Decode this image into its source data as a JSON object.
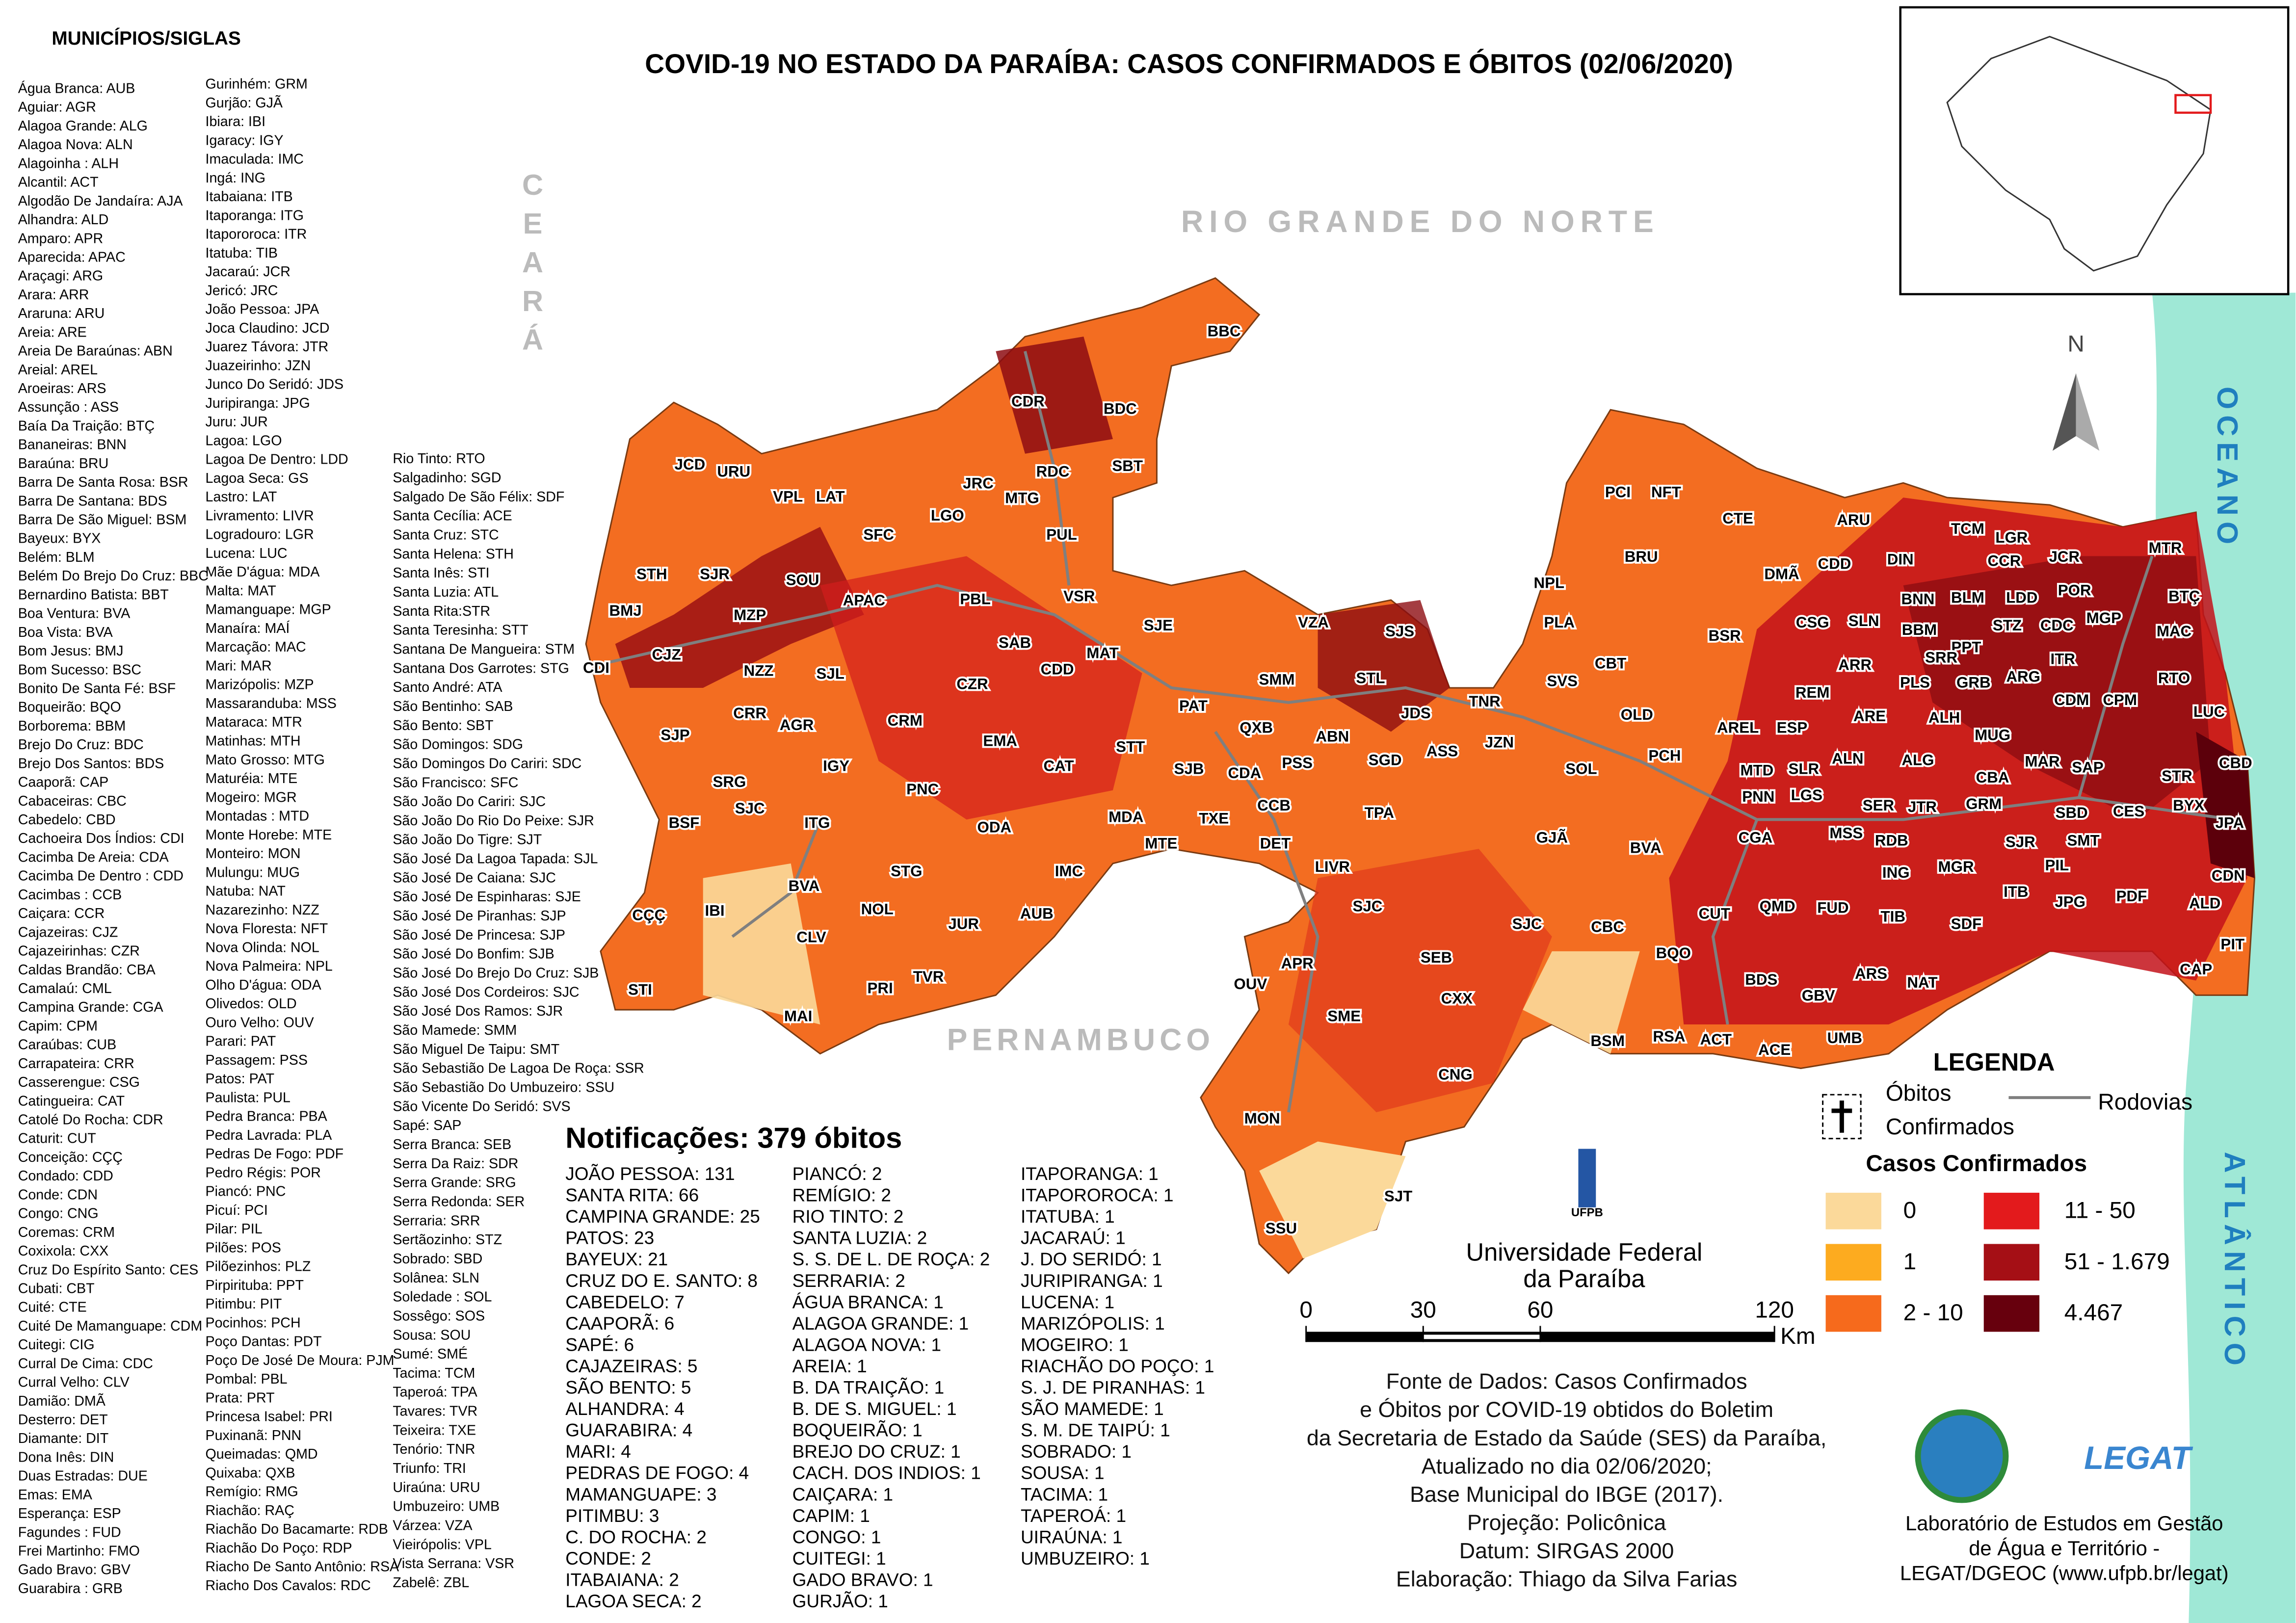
{
  "title": "COVID-19 NO ESTADO DA PARAÍBA: CASOS CONFIRMADOS E  ÓBITOS (02/06/2020)",
  "municipalities_heading": "MUNICÍPIOS/SIGLAS",
  "municipality_columns": [
    [
      "Água Branca: AUB",
      "Aguiar: AGR",
      "Alagoa Grande: ALG",
      "Alagoa Nova: ALN",
      "Alagoinha : ALH",
      "Alcantil: ACT",
      "Algodão De Jandaíra: AJA",
      "Alhandra: ALD",
      "Amparo: APR",
      "Aparecida: APAC",
      "Araçagi: ARG",
      "Arara: ARR",
      "Araruna: ARU",
      "Areia: ARE",
      "Areia De Baraúnas: ABN",
      "Areial: AREL",
      "Aroeiras: ARS",
      "Assunção : ASS",
      "Baía Da Traição: BTÇ",
      "Bananeiras: BNN",
      "Baraúna: BRU",
      "Barra De Santa Rosa: BSR",
      "Barra De Santana: BDS",
      "Barra De São Miguel: BSM",
      "Bayeux: BYX",
      "Belém: BLM",
      "Belém Do Brejo Do Cruz: BBC",
      "Bernardino Batista: BBT",
      "Boa Ventura: BVA",
      "Boa Vista: BVA",
      "Bom Jesus: BMJ",
      "Bom Sucesso: BSC",
      "Bonito De Santa Fé: BSF",
      "Boqueirão: BQO",
      "Borborema: BBM",
      "Brejo Do Cruz: BDC",
      "Brejo Dos Santos: BDS",
      "Caaporã: CAP",
      "Cabaceiras: CBC",
      "Cabedelo: CBD",
      "Cachoeira Dos Índios: CDI",
      "Cacimba De Areia: CDA",
      "Cacimba De Dentro : CDD",
      "Cacimbas : CCB",
      "Caiçara: CCR",
      "Cajazeiras: CJZ",
      "Cajazeirinhas: CZR",
      "Caldas Brandão: CBA",
      "Camalaú: CML",
      "Campina Grande: CGA",
      "Capim: CPM",
      "Caraúbas:  CUB",
      "Carrapateira: CRR",
      "Casserengue: CSG",
      "Catingueira: CAT",
      "Catolé Do Rocha: CDR",
      "Caturit: CUT",
      "Conceição: CÇÇ",
      "Condado: CDD",
      "Conde: CDN",
      "Congo: CNG",
      "Coremas: CRM",
      "Coxixola: CXX",
      "Cruz Do Espírito Santo: CES",
      "Cubati: CBT",
      "Cuité: CTE",
      "Cuité De Mamanguape: CDM",
      "Cuitegi: CIG",
      "Curral De Cima: CDC",
      "Curral Velho: CLV",
      "Damião: DMÃ",
      "Desterro: DET",
      "Diamante: DIT",
      "Dona Inês: DIN",
      "Duas Estradas: DUE",
      "Emas: EMA",
      "Esperança: ESP",
      "Fagundes : FUD",
      "Frei Martinho: FMO",
      "Gado Bravo: GBV",
      "Guarabira : GRB"
    ],
    [
      "Gurinhém: GRM",
      "Gurjão: GJÃ",
      "Ibiara: IBI",
      "Igaracy: IGY",
      "Imaculada: IMC",
      "Ingá: ING",
      "Itabaiana: ITB",
      "Itaporanga: ITG",
      "Itapororoca: ITR",
      "Itatuba: TIB",
      "Jacaraú: JCR",
      "Jericó: JRC",
      "João Pessoa: JPA",
      "Joca Claudino: JCD",
      "Juarez Távora: JTR",
      "Juazeirinho: JZN",
      "Junco Do Seridó: JDS",
      "Juripiranga: JPG",
      "Juru: JUR",
      "Lagoa: LGO",
      "Lagoa De Dentro: LDD",
      "Lagoa Seca: GS",
      "Lastro: LAT",
      "Livramento: LIVR",
      "Logradouro: LGR",
      "Lucena: LUC",
      "Mãe D'água: MDA",
      "Malta: MAT",
      "Mamanguape: MGP",
      "Manaíra: MAÍ",
      "Marcação: MAC",
      "Mari: MAR",
      "Marizópolis: MZP",
      "Massaranduba: MSS",
      "Mataraca: MTR",
      "Matinhas: MTH",
      "Mato Grosso: MTG",
      "Maturéia: MTE",
      "Mogeiro: MGR",
      "Montadas : MTD",
      "Monte Horebe: MTE",
      "Monteiro: MON",
      "Mulungu: MUG",
      "Natuba: NAT",
      "Nazarezinho: NZZ",
      "Nova Floresta: NFT",
      "Nova Olinda: NOL",
      "Nova Palmeira: NPL",
      "Olho D'água: ODA",
      "Olivedos: OLD",
      "Ouro Velho: OUV",
      "Parari: PAT",
      "Passagem: PSS",
      "Patos: PAT",
      "Paulista: PUL",
      "Pedra Branca: PBA",
      "Pedra Lavrada: PLA",
      "Pedras De Fogo: PDF",
      "Pedro Régis: POR",
      "Piancó: PNC",
      "Picuí: PCI",
      "Pilar: PIL",
      "Pilões: POS",
      "Pilõezinhos: PLZ",
      "Pirpirituba: PPT",
      "Pitimbu: PIT",
      "Pocinhos: PCH",
      "Poço Dantas: PDT",
      "Poço De José De Moura: PJM",
      "Pombal: PBL",
      "Prata: PRT",
      "Princesa Isabel: PRI",
      "Puxinanã: PNN",
      "Queimadas: QMD",
      "Quixaba: QXB",
      "Remígio: RMG",
      "Riachão: RAÇ",
      "Riachão Do Bacamarte: RDB",
      "Riachão Do Poço: RDP",
      "Riacho De Santo Antônio: RSA",
      "Riacho Dos Cavalos: RDC"
    ],
    [
      "Rio Tinto:  RTO",
      "Salgadinho: SGD",
      "Salgado De São Félix: SDF",
      "Santa Cecília: ACE",
      "Santa Cruz: STC",
      "Santa Helena: STH",
      "Santa Inês: STI",
      "Santa Luzia: ATL",
      "Santa Rita:STR",
      "Santa Teresinha: STT",
      "Santana De Mangueira: STM",
      "Santana Dos Garrotes: STG",
      "Santo André: ATA",
      "São Bentinho: SAB",
      "São Bento: SBT",
      "São Domingos: SDG",
      "São Domingos Do Cariri: SDC",
      "São Francisco: SFC",
      "São João Do Cariri: SJC",
      "São João Do Rio Do Peixe: SJR",
      "São João Do Tigre: SJT",
      "São José Da Lagoa Tapada: SJL",
      "São José De Caiana: SJC",
      "São José De Espinharas: SJE",
      "São José De Piranhas: SJP",
      "São José De Princesa: SJP",
      "São José Do Bonfim: SJB",
      "São José Do Brejo Do Cruz: SJB",
      "São José Dos Cordeiros: SJC",
      "São José Dos Ramos: SJR",
      "São Mamede: SMM",
      "São Miguel De Taipu: SMT",
      "São Sebastião De Lagoa De Roça: SSR",
      "São Sebastião Do Umbuzeiro: SSU",
      "São Vicente Do Seridó: SVS",
      "Sapé: SAP",
      "Serra Branca: SEB",
      "Serra Da Raiz: SDR",
      "Serra Grande: SRG",
      "Serra Redonda: SER",
      "Serraria: SRR",
      "Sertãozinho: STZ",
      "Sobrado: SBD",
      "Solânea: SLN",
      "Soledade : SOL",
      "Sossêgo: SOS",
      "Sousa: SOU",
      "Sumé: SMÉ",
      "Tacima: TCM",
      "Taperoá: TPA",
      "Tavares: TVR",
      "Teixeira: TXE",
      "Tenório: TNR",
      "Triunfo: TRI",
      "Uiraúna:  URU",
      "Umbuzeiro: UMB",
      "Várzea: VZA",
      "Vieirópolis: VPL",
      "Vista Serrana: VSR",
      "Zabelê: ZBL"
    ]
  ],
  "states": {
    "ceara": "CEARÁ",
    "rio_grande_do_norte": "RIO GRANDE DO NORTE",
    "pernambuco": "PERNAMBUCO"
  },
  "ocean": [
    "OCEANO",
    "ATLÂNTICO"
  ],
  "north": "N",
  "map_labels": [
    "BBC",
    "CDR",
    "BDC",
    "SBT",
    "JCD",
    "URU",
    "VPL",
    "LAT",
    "JRC",
    "RDC",
    "MTG",
    "LGO",
    "SFC",
    "PUL",
    "STH",
    "SJR",
    "SOU",
    "APAC",
    "PBL",
    "VSR",
    "BMJ",
    "MZP",
    "CJZ",
    "CDI",
    "NZZ",
    "SJL",
    "SAB",
    "CDD",
    "MAT",
    "SJE",
    "CZR",
    "CRR",
    "AGR",
    "CRM",
    "EMA",
    "SJP",
    "IGY",
    "CAT",
    "STT",
    "SRG",
    "PNC",
    "SJC",
    "BSF",
    "ITG",
    "ODA",
    "MDA",
    "MTE",
    "BVA",
    "STG",
    "IMC",
    "CÇÇ",
    "IBI",
    "NOL",
    "JUR",
    "AUB",
    "CLV",
    "TVR",
    "PRI",
    "STI",
    "MAI",
    "VZA",
    "SJS",
    "SMM",
    "STL",
    "PAT",
    "QXB",
    "ABN",
    "SJB",
    "CDA",
    "PSS",
    "SGD",
    "CCB",
    "TXE",
    "DET",
    "TPA",
    "JDS",
    "TNR",
    "ASS",
    "JZN",
    "SVS",
    "OLD",
    "SOL",
    "LIVR",
    "GJÃ",
    "BVA",
    "SJC",
    "SJC",
    "CBC",
    "APR",
    "OUV",
    "SME",
    "SEB",
    "CXX",
    "BSM",
    "RSA",
    "ACT",
    "CNG",
    "MON",
    "SJT",
    "SSU",
    "PCI",
    "NFT",
    "CTE",
    "ARU",
    "BRU",
    "NPL",
    "DMÃ",
    "CDD",
    "DIN",
    "PLA",
    "CBT",
    "BSR",
    "CSG",
    "SLN",
    "BNN",
    "BLM",
    "LDD",
    "POR",
    "BBM",
    "STZ",
    "CDC",
    "PPT",
    "MGP",
    "MTR",
    "BTÇ",
    "MAC",
    "TCM",
    "LGR",
    "CCR",
    "JCR",
    "SRR",
    "ARR",
    "ITR",
    "RTO",
    "PLS",
    "GRB",
    "ARG",
    "REM",
    "CDM",
    "CPM",
    "ARE",
    "ALH",
    "LUC",
    "AREL",
    "ESP",
    "MUG",
    "CBD",
    "PCH",
    "MTD",
    "SLR",
    "ALN",
    "ALG",
    "CBA",
    "MAR",
    "SAP",
    "STR",
    "PNN",
    "LGS",
    "SER",
    "JTR",
    "GRM",
    "SBD",
    "CES",
    "BYX",
    "JPA",
    "CGA",
    "MSS",
    "RDB",
    "SJR",
    "SMT",
    "ING",
    "MGR",
    "PIL",
    "CDN",
    "CUT",
    "QMD",
    "FUD",
    "TIB",
    "ITB",
    "JPG",
    "PDF",
    "SDF",
    "ALD",
    "BQO",
    "PIT",
    "ARS",
    "BDS",
    "GBV",
    "NAT",
    "CAP",
    "UMB",
    "ACE"
  ],
  "notifications": {
    "title": "Notificações: 379 óbitos",
    "columns": [
      [
        "JOÃO PESSOA: 131",
        "SANTA RITA: 66",
        "CAMPINA GRANDE: 25",
        "PATOS: 23",
        "BAYEUX: 21",
        "CRUZ DO E. SANTO: 8",
        "CABEDELO: 7",
        "CAAPORÃ: 6",
        "SAPÉ: 6",
        "CAJAZEIRAS: 5",
        "SÃO BENTO: 5",
        "ALHANDRA: 4",
        "GUARABIRA: 4",
        "MARI: 4",
        "PEDRAS DE FOGO: 4",
        "MAMANGUAPE: 3",
        "PITIMBU: 3",
        "C. DO ROCHA: 2",
        "CONDE: 2",
        "ITABAIANA: 2",
        "LAGOA SECA: 2"
      ],
      [
        "PIANCÓ: 2",
        "REMÍGIO: 2",
        "RIO TINTO: 2",
        "SANTA LUZIA: 2",
        "S. S. DE L. DE ROÇA: 2",
        "SERRARIA: 2",
        "ÁGUA BRANCA: 1",
        "ALAGOA GRANDE: 1",
        "ALAGOA  NOVA: 1",
        "AREIA: 1",
        "B. DA TRAIÇÃO: 1",
        "B. DE S. MIGUEL: 1",
        "BOQUEIRÃO: 1",
        "BREJO DO CRUZ: 1",
        "CACH. DOS INDIOS: 1",
        "CAIÇARA: 1",
        "CAPIM: 1",
        "CONGO: 1",
        "CUITEGI: 1",
        "GADO BRAVO: 1",
        "GURJÃO: 1"
      ],
      [
        "ITAPORANGA: 1",
        "ITAPOROROCA: 1",
        "ITATUBA: 1",
        "JACARAÚ: 1",
        "J. DO SERIDÓ: 1",
        "JURIPIRANGA: 1",
        "LUCENA: 1",
        "MARIZÓPOLIS: 1",
        "MOGEIRO: 1",
        "RIACHÃO DO POÇO: 1",
        "S. J. DE PIRANHAS: 1",
        "SÃO MAMEDE: 1",
        "S. M. DE TAIPÚ: 1",
        "SOBRADO: 1",
        "SOUSA: 1",
        "TACIMA: 1",
        "TAPEROÁ: 1",
        "UIRAÚNA: 1",
        "UMBUZEIRO: 1"
      ]
    ]
  },
  "legend": {
    "title": "LEGENDA",
    "deaths": [
      "Óbitos",
      "Confirmados"
    ],
    "roads": "Rodovias",
    "cases_title": "Casos Confirmados",
    "classes": [
      {
        "label": "0",
        "color": "#fbd99a"
      },
      {
        "label": "1",
        "color": "#fdab1f"
      },
      {
        "label": "2 - 10",
        "color": "#f66a1c"
      },
      {
        "label": "11 - 50",
        "color": "#e31a1c"
      },
      {
        "label": "51 - 1.679",
        "color": "#a50f15"
      },
      {
        "label": "4.467",
        "color": "#67000d"
      }
    ]
  },
  "scale": {
    "xlim": [
      0,
      120
    ],
    "xticks": [
      0,
      30,
      60,
      120
    ],
    "unit": "Km"
  },
  "institution": {
    "logo": "UFPB",
    "name": [
      "Universidade Federal",
      "da Paraíba"
    ]
  },
  "source": [
    "Fonte de Dados: Casos Confirmados",
    "e Óbitos por COVID-19 obtidos do Boletim",
    "da Secretaria de Estado da Saúde (SES) da Paraíba,",
    "Atualizado no dia 02/06/2020;",
    "Base Municipal do IBGE (2017).",
    "Projeção: Policônica",
    "Datum: SIRGAS 2000",
    "Elaboração: Thiago da Silva Farias"
  ],
  "lab": {
    "logo": "LEGAT",
    "lines": [
      "Laboratório de Estudos em Gestão",
      "de Água e Território -",
      "LEGAT/DGEOC (www.ufpb.br/legat)"
    ]
  }
}
